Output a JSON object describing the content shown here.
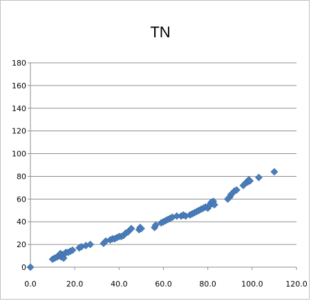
{
  "chart_data": {
    "type": "scatter",
    "title": "TN",
    "xlabel": "",
    "ylabel": "",
    "xlim": [
      0,
      120
    ],
    "ylim": [
      0,
      180
    ],
    "x_ticks": [
      "0.0",
      "20.0",
      "40.0",
      "60.0",
      "80.0",
      "100.0",
      "120.0"
    ],
    "y_ticks": [
      "0",
      "20",
      "40",
      "60",
      "80",
      "100",
      "120",
      "140",
      "160",
      "180"
    ],
    "grid": "horizontal",
    "legend": "none",
    "marker": "diamond",
    "color": "#4a7ebb",
    "series": [
      {
        "points": [
          [
            0,
            0
          ],
          [
            10,
            7
          ],
          [
            11,
            8
          ],
          [
            12,
            9
          ],
          [
            13,
            10
          ],
          [
            13.5,
            12
          ],
          [
            14,
            9
          ],
          [
            14.5,
            11
          ],
          [
            15,
            8
          ],
          [
            15.5,
            12
          ],
          [
            16,
            13
          ],
          [
            17,
            13
          ],
          [
            18,
            14
          ],
          [
            19,
            15
          ],
          [
            22,
            17
          ],
          [
            23,
            18
          ],
          [
            25,
            19
          ],
          [
            27,
            20
          ],
          [
            33,
            21
          ],
          [
            34,
            23
          ],
          [
            36,
            24
          ],
          [
            37,
            25
          ],
          [
            38,
            25
          ],
          [
            39,
            26
          ],
          [
            40,
            27
          ],
          [
            41,
            27
          ],
          [
            42,
            28
          ],
          [
            43,
            30
          ],
          [
            44,
            31
          ],
          [
            45,
            33
          ],
          [
            45.5,
            34
          ],
          [
            49,
            33
          ],
          [
            49.5,
            35
          ],
          [
            50,
            34
          ],
          [
            56,
            35
          ],
          [
            56.5,
            37
          ],
          [
            59,
            39
          ],
          [
            60,
            40
          ],
          [
            61,
            41
          ],
          [
            62,
            42
          ],
          [
            63,
            43
          ],
          [
            64,
            44
          ],
          [
            66,
            45
          ],
          [
            68,
            45
          ],
          [
            69,
            46
          ],
          [
            70,
            45
          ],
          [
            72,
            46
          ],
          [
            73,
            47
          ],
          [
            74,
            48
          ],
          [
            75,
            49
          ],
          [
            76,
            50
          ],
          [
            77,
            51
          ],
          [
            78,
            52
          ],
          [
            79,
            53
          ],
          [
            80,
            52
          ],
          [
            80.5,
            54
          ],
          [
            81,
            55
          ],
          [
            81.5,
            57
          ],
          [
            82,
            56
          ],
          [
            82.5,
            58
          ],
          [
            83,
            55
          ],
          [
            89,
            60
          ],
          [
            90,
            62
          ],
          [
            90.5,
            64
          ],
          [
            91,
            65
          ],
          [
            92,
            67
          ],
          [
            93,
            68
          ],
          [
            96,
            72
          ],
          [
            97,
            74
          ],
          [
            98,
            75
          ],
          [
            98.5,
            77
          ],
          [
            99,
            76
          ],
          [
            103,
            79
          ],
          [
            110,
            84
          ]
        ]
      }
    ]
  }
}
